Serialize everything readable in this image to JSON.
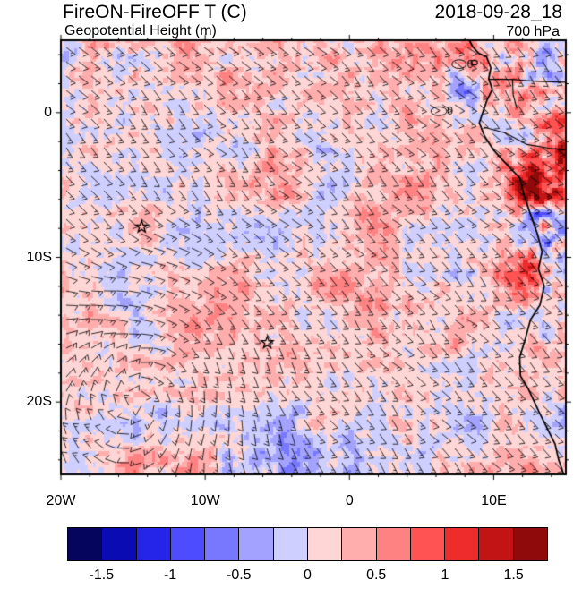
{
  "header": {
    "title": "FireON-FireOFF T (C)",
    "datetime": "2018-09-28_18",
    "field_label": "Geopotential Height (m)",
    "level_label": "700 hPa"
  },
  "chart_data": {
    "type": "heatmap",
    "title": "FireON-FireOFF T (C)",
    "subtitle": "Geopotential Height (m)",
    "datetime_label": "2018-09-28_18",
    "pressure_level": "700 hPa",
    "variable": "Temperature difference FireON minus FireOFF (C)",
    "overlays": [
      "wind barbs",
      "geopotential height contours",
      "coastline",
      "country borders"
    ],
    "x_axis": {
      "ticks": [
        "20W",
        "10W",
        "0",
        "10E"
      ],
      "tick_values": [
        -20,
        -10,
        0,
        10
      ],
      "range": [
        -20,
        15
      ]
    },
    "y_axis": {
      "ticks": [
        "0",
        "10S",
        "20S"
      ],
      "tick_values": [
        0,
        -10,
        -20
      ],
      "range": [
        5,
        -25
      ]
    },
    "colorbar": {
      "min": -1.75,
      "step": 0.25,
      "tick_labels": [
        "-1.5",
        "-1",
        "-0.5",
        "0",
        "0.5",
        "1",
        "1.5"
      ],
      "colors": [
        "#05055e",
        "#0b0bb4",
        "#2525ea",
        "#4d4dff",
        "#7878ff",
        "#a3a3ff",
        "#cfcfff",
        "#ffd6d6",
        "#ffadad",
        "#ff8282",
        "#ff5252",
        "#ee2c2c",
        "#c21414",
        "#8f0a0a"
      ]
    },
    "markers": [
      {
        "type": "star",
        "lon": -14.4,
        "lat": -7.9
      },
      {
        "type": "star",
        "lon": -5.7,
        "lat": -15.9
      }
    ],
    "contours": [
      {
        "label": "0",
        "lon": 7.6,
        "lat": 3.35,
        "rx": 0.5,
        "ry": 0.3,
        "label_lon": 8.35,
        "label_lat": 3.35
      },
      {
        "label": "0",
        "lon": 6.2,
        "lat": 0.1,
        "rx": 0.55,
        "ry": 0.3,
        "label_lon": 6.95,
        "label_lat": 0.1
      }
    ],
    "field": {
      "base_bias": 0.14,
      "base_amp": 0.55,
      "features": [
        {
          "name": "coastal-angola-warm",
          "lon": 12.8,
          "lat": -8.5,
          "sx": 2.2,
          "sy": 5.5,
          "bias": 0.3,
          "amp": 1.1
        },
        {
          "name": "coastal-gulf-mixed",
          "lon": 11.5,
          "lat": 2.5,
          "sx": 3.5,
          "sy": 3.0,
          "bias": 0.05,
          "amp": 0.9
        },
        {
          "name": "coastal-congo-warm",
          "lon": 13.8,
          "lat": -4.0,
          "sx": 2.0,
          "sy": 3.5,
          "bias": 0.2,
          "amp": 1.0
        },
        {
          "name": "equator-north-cool-band",
          "lon": -3.0,
          "lat": 4.8,
          "sx": 15.0,
          "sy": 2.2,
          "bias": -0.12,
          "amp": 0.28
        },
        {
          "name": "northwest-cool",
          "lon": -17.0,
          "lat": 2.0,
          "sx": 3.5,
          "sy": 3.0,
          "bias": -0.28,
          "amp": 0.15
        },
        {
          "name": "south-cool-band",
          "lon": -8.0,
          "lat": -23.5,
          "sx": 11.0,
          "sy": 2.5,
          "bias": -0.1,
          "amp": 0.2
        },
        {
          "name": "vortex-region-cool",
          "lon": -13.5,
          "lat": -19.0,
          "sx": 4.5,
          "sy": 3.5,
          "bias": -0.12,
          "amp": 0.05
        },
        {
          "name": "mid-left-cool",
          "lon": -16.5,
          "lat": -12.0,
          "sx": 3.0,
          "sy": 2.5,
          "bias": -0.1,
          "amp": 0.1
        }
      ]
    },
    "wind": {
      "background": {
        "u": -3.0,
        "v": 3.2
      },
      "vortex": {
        "lon": -14.5,
        "lat": -19.7,
        "strength": 2.4,
        "radius": 4.5
      }
    },
    "geography": {
      "coastline": [
        [
          8.3,
          5.0
        ],
        [
          8.55,
          4.55
        ],
        [
          8.95,
          4.1
        ],
        [
          9.5,
          3.85
        ],
        [
          9.8,
          3.1
        ],
        [
          9.65,
          2.35
        ],
        [
          9.9,
          1.6
        ],
        [
          9.55,
          0.9
        ],
        [
          9.3,
          0.2
        ],
        [
          9.0,
          -0.7
        ],
        [
          9.35,
          -1.6
        ],
        [
          10.0,
          -2.6
        ],
        [
          11.1,
          -3.8
        ],
        [
          11.8,
          -4.5
        ],
        [
          12.1,
          -5.7
        ],
        [
          12.5,
          -6.9
        ],
        [
          13.0,
          -8.3
        ],
        [
          13.35,
          -9.6
        ],
        [
          13.1,
          -10.8
        ],
        [
          13.5,
          -12.0
        ],
        [
          13.2,
          -13.3
        ],
        [
          12.55,
          -14.3
        ],
        [
          12.2,
          -15.6
        ],
        [
          11.8,
          -16.9
        ],
        [
          11.85,
          -18.2
        ],
        [
          12.4,
          -19.1
        ],
        [
          13.1,
          -20.6
        ],
        [
          13.7,
          -21.8
        ],
        [
          14.25,
          -22.9
        ],
        [
          14.5,
          -24.0
        ],
        [
          14.85,
          -25.0
        ]
      ],
      "borders": [
        [
          [
            9.65,
            2.3
          ],
          [
            11.3,
            2.3
          ],
          [
            13.0,
            2.15
          ],
          [
            15.0,
            2.1
          ]
        ],
        [
          [
            9.3,
            -1.0
          ],
          [
            10.8,
            -1.4
          ],
          [
            12.3,
            -2.2
          ],
          [
            13.8,
            -2.45
          ],
          [
            15.0,
            -2.6
          ]
        ],
        [
          [
            11.3,
            2.3
          ],
          [
            11.35,
            1.2
          ],
          [
            11.6,
            0.3
          ]
        ]
      ],
      "islands": [
        {
          "lon": 8.65,
          "lat": 3.45,
          "rx": 0.22,
          "ry": 0.16
        }
      ]
    }
  }
}
